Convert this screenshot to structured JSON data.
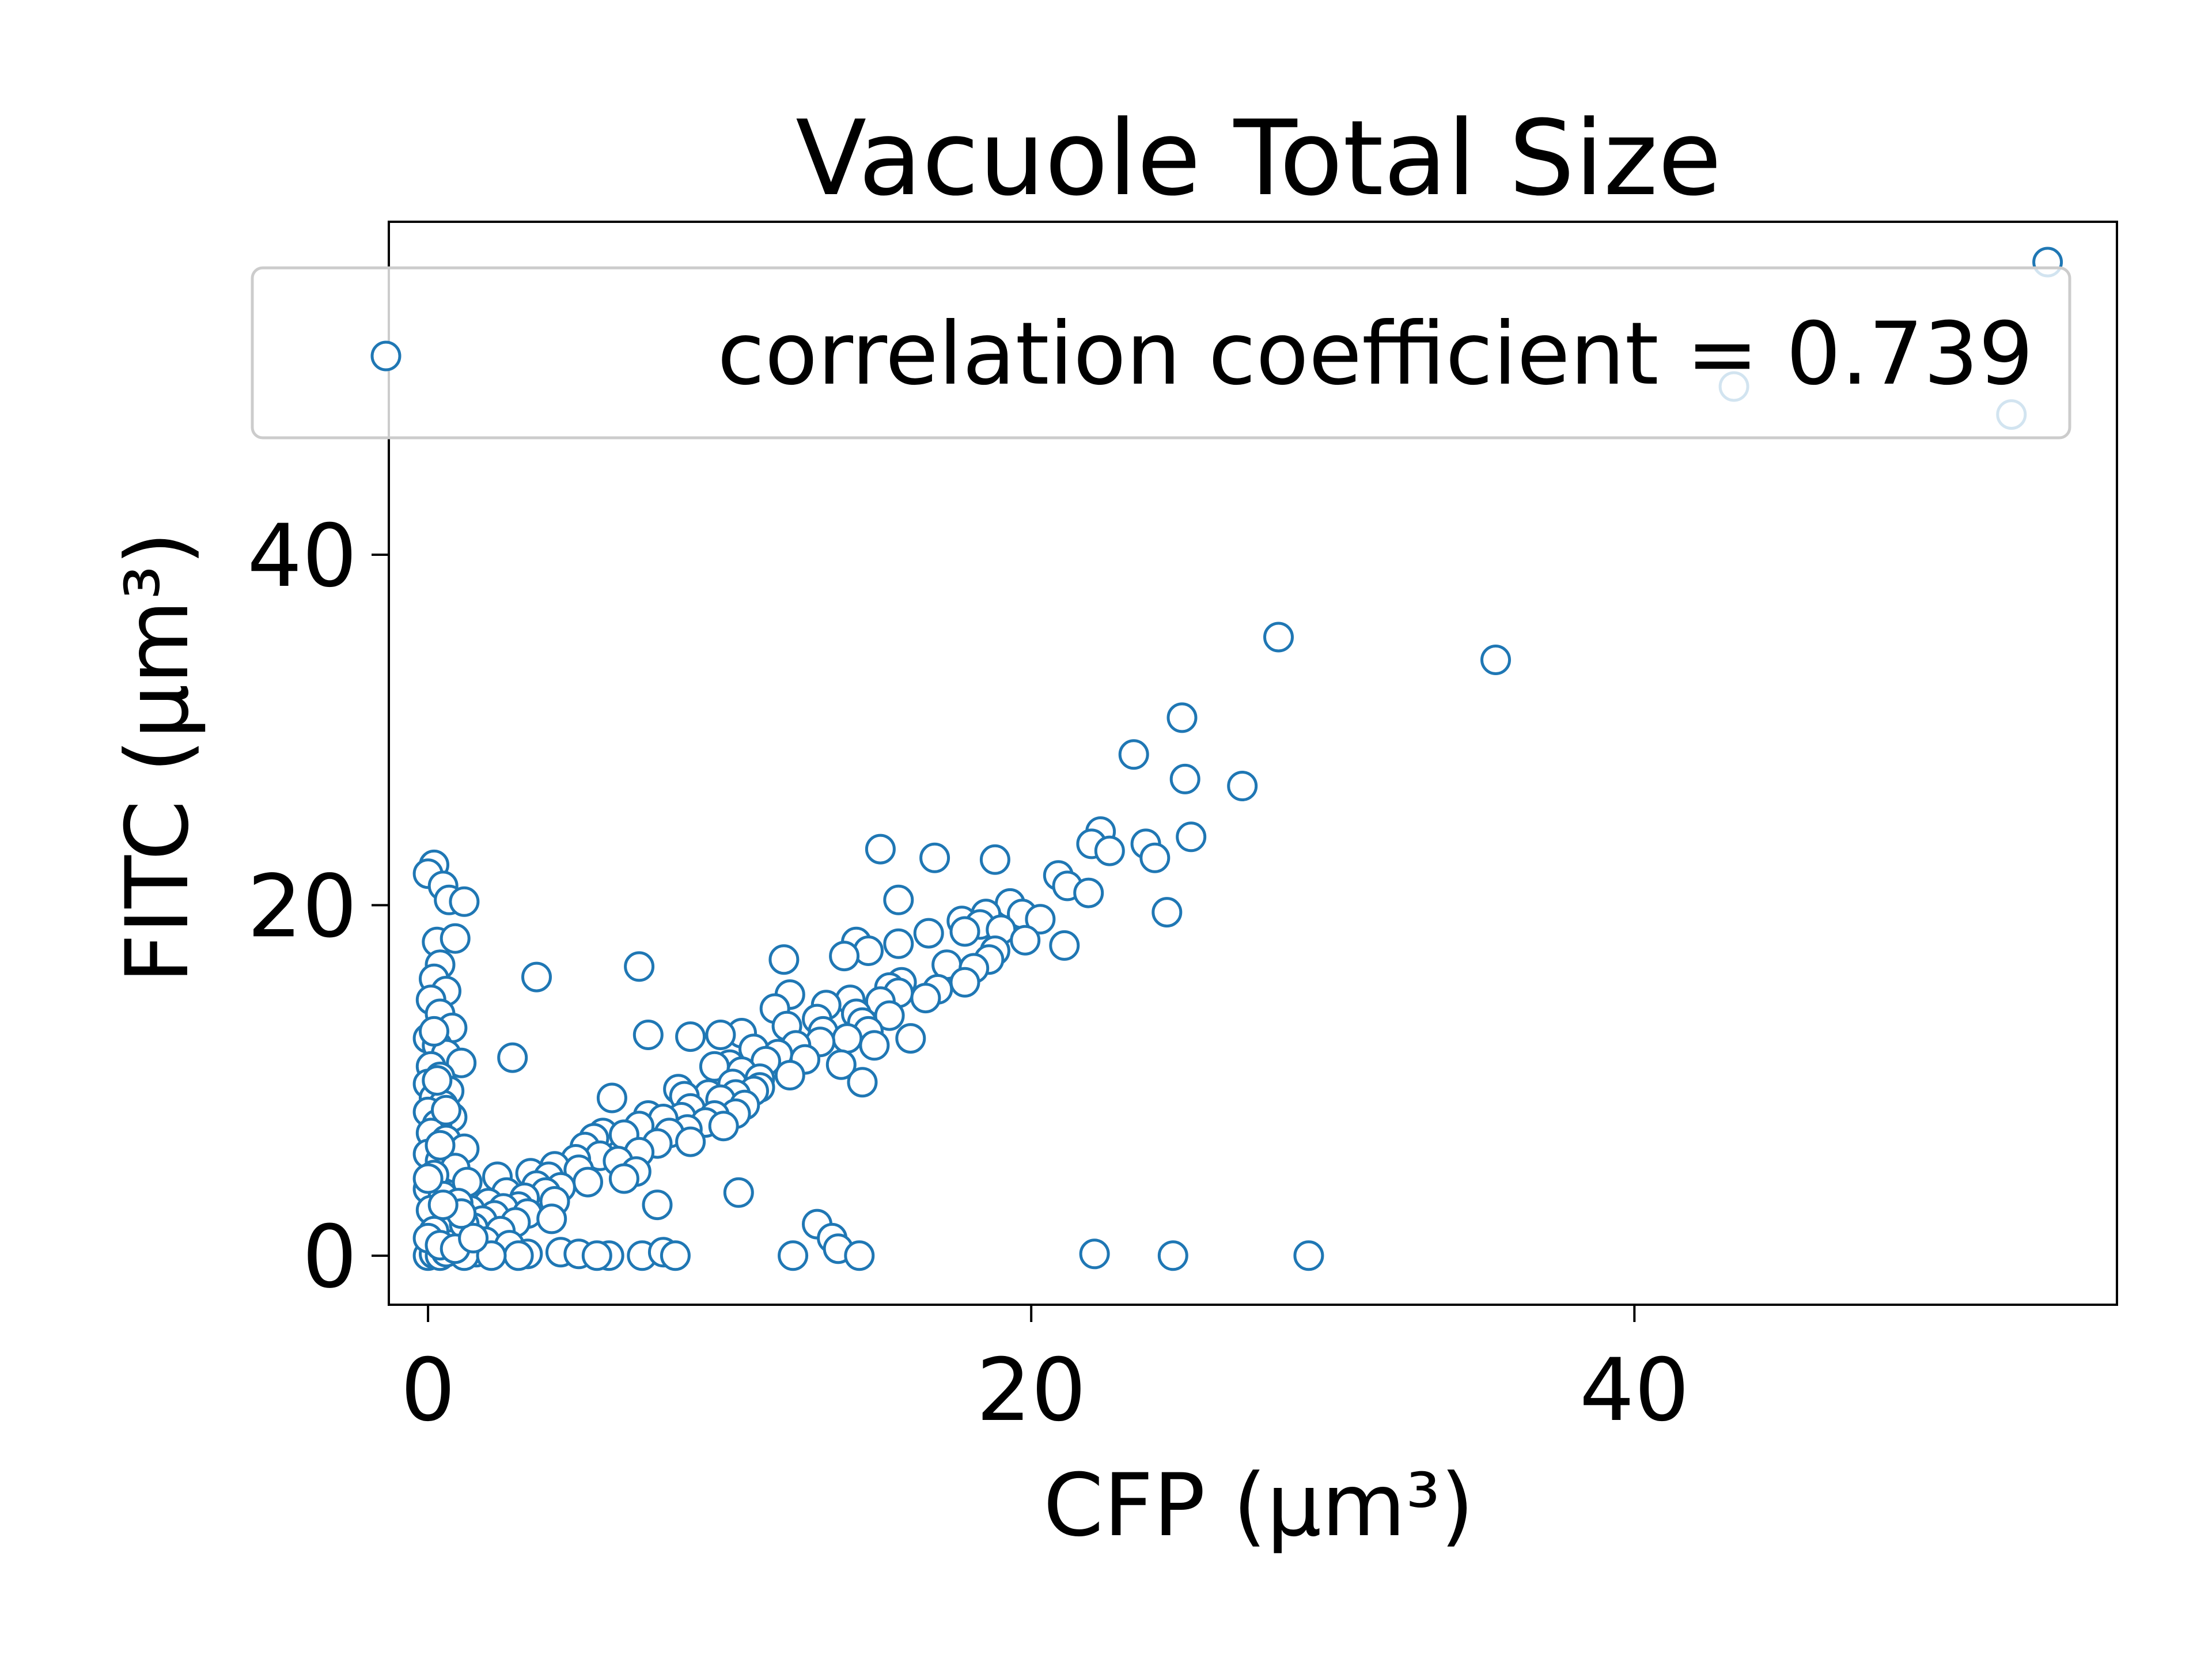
{
  "chart_data": {
    "type": "scatter",
    "title": "Vacuole Total Size",
    "xlabel": "CFP (μm³)",
    "ylabel": "FITC (μm³)",
    "xlim": [
      -1.3,
      56.0
    ],
    "ylim": [
      -2.8,
      59.0
    ],
    "xticks": [
      0,
      20,
      40
    ],
    "yticks": [
      0,
      20,
      40
    ],
    "grid": false,
    "legend_position": "top",
    "color": "#1f77b4",
    "marker": "open-circle",
    "series": [
      {
        "name": "correlation coefficient = 0.739",
        "points": [
          [
            53.7,
            56.7
          ],
          [
            43.3,
            49.6
          ],
          [
            52.5,
            48.0
          ],
          [
            28.2,
            35.3
          ],
          [
            35.4,
            34.0
          ],
          [
            25.0,
            30.7
          ],
          [
            23.4,
            28.6
          ],
          [
            25.1,
            27.2
          ],
          [
            27.0,
            26.8
          ],
          [
            22.3,
            24.2
          ],
          [
            25.3,
            23.9
          ],
          [
            22.0,
            23.5
          ],
          [
            23.8,
            23.5
          ],
          [
            22.6,
            23.1
          ],
          [
            15.0,
            23.2
          ],
          [
            16.8,
            22.7
          ],
          [
            18.8,
            22.6
          ],
          [
            24.1,
            22.7
          ],
          [
            20.9,
            21.7
          ],
          [
            21.2,
            21.1
          ],
          [
            21.9,
            20.7
          ],
          [
            15.6,
            20.3
          ],
          [
            19.3,
            20.1
          ],
          [
            24.5,
            19.6
          ],
          [
            18.5,
            19.5
          ],
          [
            19.7,
            19.5
          ],
          [
            20.3,
            19.2
          ],
          [
            17.7,
            19.1
          ],
          [
            18.3,
            18.9
          ],
          [
            17.8,
            18.5
          ],
          [
            19.0,
            18.6
          ],
          [
            16.6,
            18.4
          ],
          [
            19.8,
            18.0
          ],
          [
            15.6,
            17.8
          ],
          [
            21.1,
            17.7
          ],
          [
            14.2,
            17.9
          ],
          [
            18.8,
            17.4
          ],
          [
            14.6,
            17.4
          ],
          [
            13.8,
            17.1
          ],
          [
            18.6,
            16.9
          ],
          [
            11.8,
            16.9
          ],
          [
            17.2,
            16.6
          ],
          [
            7.0,
            16.5
          ],
          [
            18.1,
            16.4
          ],
          [
            3.6,
            15.9
          ],
          [
            15.7,
            15.6
          ],
          [
            17.8,
            15.6
          ],
          [
            16.9,
            15.2
          ],
          [
            15.3,
            15.3
          ],
          [
            15.6,
            15.0
          ],
          [
            12.0,
            14.9
          ],
          [
            16.5,
            14.7
          ],
          [
            14.0,
            14.6
          ],
          [
            15.0,
            14.5
          ],
          [
            13.2,
            14.3
          ],
          [
            11.5,
            14.1
          ],
          [
            14.2,
            13.8
          ],
          [
            15.3,
            13.7
          ],
          [
            12.9,
            13.5
          ],
          [
            14.4,
            13.3
          ],
          [
            11.9,
            13.1
          ],
          [
            13.1,
            12.8
          ],
          [
            14.6,
            12.8
          ],
          [
            10.4,
            12.7
          ],
          [
            9.7,
            12.6
          ],
          [
            7.3,
            12.6
          ],
          [
            8.7,
            12.5
          ],
          [
            13.9,
            12.4
          ],
          [
            16.0,
            12.4
          ],
          [
            13.0,
            12.2
          ],
          [
            12.2,
            12.0
          ],
          [
            14.8,
            12.0
          ],
          [
            10.8,
            11.8
          ],
          [
            11.6,
            11.5
          ],
          [
            12.5,
            11.2
          ],
          [
            2.8,
            11.3
          ],
          [
            11.2,
            11.1
          ],
          [
            10.0,
            10.9
          ],
          [
            9.5,
            10.8
          ],
          [
            13.7,
            10.9
          ],
          [
            10.4,
            10.5
          ],
          [
            12.0,
            10.3
          ],
          [
            11.0,
            10.1
          ],
          [
            14.4,
            9.9
          ],
          [
            10.1,
            9.8
          ],
          [
            11.0,
            9.6
          ],
          [
            8.3,
            9.5
          ],
          [
            10.8,
            9.4
          ],
          [
            10.2,
            9.2
          ],
          [
            9.3,
            9.2
          ],
          [
            8.5,
            9.1
          ],
          [
            6.1,
            9.0
          ],
          [
            9.7,
            8.9
          ],
          [
            10.5,
            8.6
          ],
          [
            8.7,
            8.4
          ],
          [
            10.2,
            8.1
          ],
          [
            9.5,
            8.0
          ],
          [
            7.3,
            8.0
          ],
          [
            8.4,
            7.9
          ],
          [
            7.8,
            7.8
          ],
          [
            9.2,
            7.6
          ],
          [
            9.8,
            7.4
          ],
          [
            7.0,
            7.4
          ],
          [
            8.6,
            7.2
          ],
          [
            5.8,
            7.0
          ],
          [
            8.0,
            7.0
          ],
          [
            6.5,
            6.9
          ],
          [
            5.5,
            6.7
          ],
          [
            8.7,
            6.5
          ],
          [
            7.6,
            6.4
          ],
          [
            5.2,
            6.2
          ],
          [
            7.0,
            5.9
          ],
          [
            5.7,
            5.7
          ],
          [
            4.9,
            5.5
          ],
          [
            6.3,
            5.4
          ],
          [
            4.2,
            5.1
          ],
          [
            5.0,
            4.9
          ],
          [
            6.9,
            4.8
          ],
          [
            3.4,
            4.7
          ],
          [
            4.0,
            4.5
          ],
          [
            2.3,
            4.5
          ],
          [
            6.5,
            4.4
          ],
          [
            5.3,
            4.2
          ],
          [
            3.6,
            4.0
          ],
          [
            4.4,
            3.9
          ],
          [
            3.9,
            3.6
          ],
          [
            2.6,
            3.6
          ],
          [
            10.3,
            3.6
          ],
          [
            3.2,
            3.3
          ],
          [
            4.2,
            3.1
          ],
          [
            2.0,
            3.0
          ],
          [
            7.6,
            2.9
          ],
          [
            3.0,
            2.8
          ],
          [
            2.5,
            2.7
          ],
          [
            1.4,
            2.6
          ],
          [
            3.3,
            2.4
          ],
          [
            2.2,
            2.3
          ],
          [
            4.1,
            2.1
          ],
          [
            1.8,
            2.0
          ],
          [
            2.9,
            1.9
          ],
          [
            12.9,
            1.8
          ],
          [
            1.5,
            1.6
          ],
          [
            2.4,
            1.4
          ],
          [
            13.4,
            1.0
          ],
          [
            1.9,
            0.8
          ],
          [
            2.7,
            0.6
          ],
          [
            13.6,
            0.4
          ],
          [
            0.9,
            0.3
          ],
          [
            1.6,
            0.2
          ],
          [
            3.3,
            0.1
          ],
          [
            4.4,
            0.2
          ],
          [
            5.0,
            0.1
          ],
          [
            6.0,
            0.0
          ],
          [
            7.1,
            0.0
          ],
          [
            7.8,
            0.2
          ],
          [
            8.2,
            0.0
          ],
          [
            3.0,
            0.0
          ],
          [
            12.1,
            0.0
          ],
          [
            14.3,
            0.0
          ],
          [
            22.1,
            0.1
          ],
          [
            24.7,
            0.0
          ],
          [
            29.2,
            0.0
          ],
          [
            0.0,
            0.0
          ],
          [
            0.2,
            0.1
          ],
          [
            0.4,
            0.0
          ],
          [
            0.6,
            0.2
          ],
          [
            1.2,
            0.0
          ],
          [
            2.1,
            0.0
          ],
          [
            5.6,
            0.0
          ],
          [
            0.2,
            22.3
          ],
          [
            0.0,
            21.8
          ],
          [
            0.5,
            21.1
          ],
          [
            0.7,
            20.3
          ],
          [
            1.2,
            20.2
          ],
          [
            0.3,
            17.9
          ],
          [
            0.9,
            18.1
          ],
          [
            0.4,
            16.6
          ],
          [
            0.2,
            15.8
          ],
          [
            0.6,
            15.1
          ],
          [
            0.1,
            14.6
          ],
          [
            0.4,
            13.8
          ],
          [
            0.8,
            13.0
          ],
          [
            0.0,
            12.4
          ],
          [
            0.3,
            12.0
          ],
          [
            0.6,
            11.5
          ],
          [
            1.1,
            11.0
          ],
          [
            0.1,
            10.8
          ],
          [
            0.4,
            10.2
          ],
          [
            0.0,
            9.8
          ],
          [
            0.7,
            9.4
          ],
          [
            0.2,
            9.0
          ],
          [
            0.5,
            8.6
          ],
          [
            0.0,
            8.2
          ],
          [
            0.8,
            7.9
          ],
          [
            0.3,
            7.5
          ],
          [
            0.1,
            7.0
          ],
          [
            0.6,
            6.6
          ],
          [
            1.2,
            6.1
          ],
          [
            0.0,
            5.8
          ],
          [
            0.4,
            5.4
          ],
          [
            0.9,
            5.0
          ],
          [
            0.2,
            4.6
          ],
          [
            1.3,
            4.2
          ],
          [
            0.0,
            3.8
          ],
          [
            0.5,
            3.4
          ],
          [
            1.0,
            3.0
          ],
          [
            0.1,
            2.6
          ],
          [
            0.7,
            2.2
          ],
          [
            1.2,
            1.8
          ],
          [
            0.2,
            1.4
          ],
          [
            0.0,
            1.0
          ],
          [
            0.4,
            0.6
          ],
          [
            0.9,
            0.4
          ],
          [
            1.5,
            1.0
          ],
          [
            1.1,
            2.4
          ],
          [
            0.3,
            10.0
          ],
          [
            0.6,
            8.3
          ],
          [
            0.2,
            12.8
          ],
          [
            0.4,
            6.3
          ],
          [
            0.0,
            4.4
          ],
          [
            0.5,
            2.9
          ]
        ]
      }
    ]
  }
}
